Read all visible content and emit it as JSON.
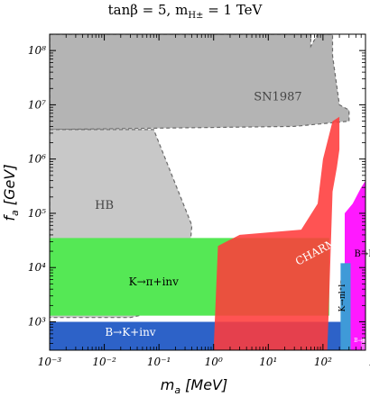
{
  "title": {
    "main": "tanβ = 5,  m",
    "sub": "H±",
    "tail": " = 1 TeV"
  },
  "chart_data": {
    "type": "area",
    "title": "tanβ = 5,  mH± = 1 TeV",
    "xlabel": "m_a [MeV]",
    "ylabel": "f_a [GeV]",
    "x_scale": "log",
    "y_scale": "log",
    "xlim": [
      0.001,
      600
    ],
    "ylim": [
      300,
      200000000
    ],
    "x_ticks": [
      0.001,
      0.01,
      0.1,
      1,
      10,
      100,
      1000
    ],
    "x_tick_labels": [
      "10^-3",
      "10^-2",
      "10^-1",
      "10^0",
      "10^1",
      "10^2",
      "10^3"
    ],
    "y_ticks": [
      1000,
      10000,
      100000,
      1000000,
      10000000,
      100000000
    ],
    "y_tick_labels": [
      "10^3",
      "10^4",
      "10^5",
      "10^6",
      "10^7",
      "10^8"
    ],
    "grid": false,
    "legend": "none",
    "regions": [
      {
        "label": "SN1987",
        "color": "#b4b4b4",
        "boundary": [
          [
            0.001,
            200000000
          ],
          [
            60,
            200000000
          ],
          [
            60,
            120000000
          ],
          [
            80,
            200000000
          ],
          [
            150,
            200000000
          ],
          [
            150,
            80000000
          ],
          [
            200,
            10000000
          ],
          [
            300,
            8000000
          ],
          [
            300,
            5000000
          ],
          [
            30,
            4000000
          ],
          [
            0.001,
            3500000
          ]
        ]
      },
      {
        "label": "HB",
        "color": "#c8c8c8",
        "boundary": [
          [
            0.001,
            3500000
          ],
          [
            0.08,
            3500000
          ],
          [
            0.4,
            60000
          ],
          [
            0.3,
            2000
          ],
          [
            0.03,
            1200
          ],
          [
            0.001,
            1200
          ]
        ]
      },
      {
        "label": "K→π+inv",
        "color": "#55e855",
        "boundary": [
          [
            0.001,
            35000
          ],
          [
            130,
            35000
          ],
          [
            130,
            1300
          ],
          [
            0.001,
            1300
          ]
        ]
      },
      {
        "label": "B→K+inv",
        "color": "#2d62c8",
        "boundary": [
          [
            0.001,
            1000
          ],
          [
            300,
            1000
          ],
          [
            300,
            300
          ],
          [
            0.001,
            300
          ]
        ]
      },
      {
        "label": "CHARM",
        "color": "#ff3b3b",
        "boundary": [
          [
            1,
            300
          ],
          [
            1.2,
            25000
          ],
          [
            3,
            40000
          ],
          [
            40,
            50000
          ],
          [
            80,
            150000
          ],
          [
            100,
            1000000
          ],
          [
            150,
            5000000
          ],
          [
            200,
            6000000
          ],
          [
            200,
            1500000
          ],
          [
            180,
            700000
          ],
          [
            150,
            250000
          ],
          [
            130,
            3000
          ],
          [
            120,
            300
          ]
        ]
      },
      {
        "label": "B→Kl⁺l⁻",
        "color": "#ff00ff",
        "boundary": [
          [
            250,
            300
          ],
          [
            250,
            100000
          ],
          [
            350,
            150000
          ],
          [
            500,
            300000
          ],
          [
            600,
            400000
          ],
          [
            600,
            300
          ]
        ]
      },
      {
        "label": "K→πl⁺l⁻",
        "color": "#3f9ad8",
        "boundary": [
          [
            210,
            300
          ],
          [
            210,
            12000
          ],
          [
            320,
            12000
          ],
          [
            320,
            300
          ]
        ]
      },
      {
        "label": "B→Kγγ",
        "color": "#ff66ff",
        "boundary": [
          [
            500,
            300
          ],
          [
            500,
            500
          ],
          [
            600,
            500
          ],
          [
            600,
            300
          ]
        ]
      }
    ],
    "annotations": [
      "SN1987",
      "HB",
      "CHARM",
      "K→π+inv",
      "B→K+inv",
      "B→Kl⁺l⁻",
      "K→πl⁺l⁻",
      "B→Kγγ"
    ]
  },
  "region_labels": {
    "sn1987": "SN1987",
    "hb": "HB",
    "charm": "CHARM",
    "kpi_inv": "K→π+inv",
    "bk_inv": "B→K+inv",
    "bkll": "B→Kl⁺l⁻",
    "kpill": "K→πl⁺l⁻",
    "bkgg": "B→Kγγ"
  },
  "axis": {
    "x_label": "m",
    "x_sub": "a",
    "x_unit": " [MeV]",
    "y_label": "f",
    "y_sub": "a",
    "y_unit": " [GeV]"
  },
  "colors": {
    "sn1987": "#b4b4b4",
    "hb": "#c8c8c8",
    "kpi_inv": "#55e855",
    "bk_inv": "#2d62c8",
    "charm": "#ff3b3b",
    "bkll": "#ff00ff",
    "kpill": "#3f9ad8",
    "cyan": "#40e8e8"
  }
}
